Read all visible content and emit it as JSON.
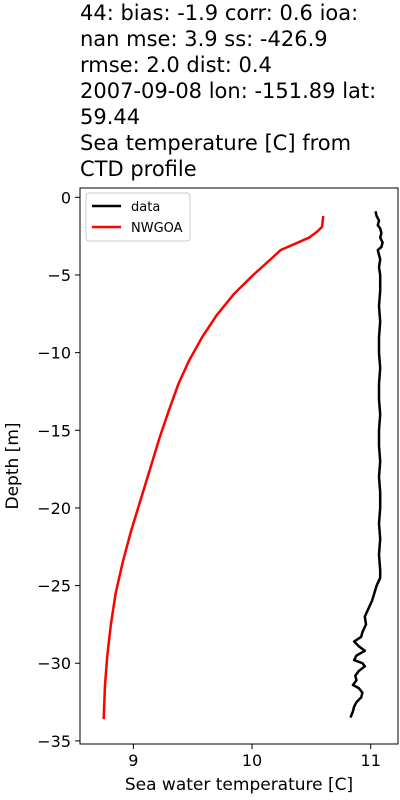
{
  "title_lines": [
    "44: bias: -1.9  corr: 0.6  ioa:",
    "nan  mse: 3.9  ss: -426.9",
    "rmse: 2.0  dist: 0.4",
    "2007-09-08 lon: -151.89 lat:",
    "59.44",
    "Sea temperature [C] from",
    "CTD profile"
  ],
  "chart_data": {
    "type": "line",
    "title": "44: bias: -1.9  corr: 0.6  ioa: nan  mse: 3.9  ss: -426.9 rmse: 2.0  dist: 0.4 2007-09-08 lon: -151.89 lat: 59.44 Sea temperature [C] from CTD profile",
    "xlabel": "Sea water temperature [C]",
    "ylabel": "Depth [m]",
    "xlim": [
      8.55,
      11.23
    ],
    "ylim": [
      -35.2,
      0.6
    ],
    "xticks": [
      9,
      10,
      11
    ],
    "xtick_labels": [
      "9",
      "10",
      "11"
    ],
    "yticks": [
      0,
      -5,
      -10,
      -15,
      -20,
      -25,
      -30,
      -35
    ],
    "ytick_labels": [
      "0",
      "−5",
      "−10",
      "−15",
      "−20",
      "−25",
      "−30",
      "−35"
    ],
    "grid": false,
    "legend": "top-left",
    "series": [
      {
        "name": "data",
        "color": "#000000",
        "points": [
          [
            11.04,
            -0.9
          ],
          [
            11.05,
            -1.2
          ],
          [
            11.07,
            -1.5
          ],
          [
            11.06,
            -1.8
          ],
          [
            11.08,
            -2.0
          ],
          [
            11.09,
            -2.3
          ],
          [
            11.08,
            -2.6
          ],
          [
            11.1,
            -2.9
          ],
          [
            11.09,
            -3.2
          ],
          [
            11.06,
            -3.4
          ],
          [
            11.07,
            -3.7
          ],
          [
            11.08,
            -4.0
          ],
          [
            11.07,
            -4.5
          ],
          [
            11.08,
            -5.0
          ],
          [
            11.08,
            -6.0
          ],
          [
            11.07,
            -7.0
          ],
          [
            11.08,
            -8.0
          ],
          [
            11.07,
            -9.0
          ],
          [
            11.07,
            -10.0
          ],
          [
            11.08,
            -11.0
          ],
          [
            11.07,
            -12.0
          ],
          [
            11.07,
            -13.0
          ],
          [
            11.08,
            -14.0
          ],
          [
            11.07,
            -15.0
          ],
          [
            11.07,
            -16.0
          ],
          [
            11.08,
            -17.0
          ],
          [
            11.07,
            -18.0
          ],
          [
            11.08,
            -19.0
          ],
          [
            11.08,
            -20.0
          ],
          [
            11.07,
            -21.0
          ],
          [
            11.08,
            -22.0
          ],
          [
            11.07,
            -23.0
          ],
          [
            11.08,
            -24.0
          ],
          [
            11.08,
            -24.5
          ],
          [
            11.05,
            -25.0
          ],
          [
            11.03,
            -25.5
          ],
          [
            11.01,
            -26.0
          ],
          [
            10.98,
            -26.5
          ],
          [
            10.95,
            -27.0
          ],
          [
            10.96,
            -27.5
          ],
          [
            10.93,
            -28.0
          ],
          [
            10.92,
            -28.3
          ],
          [
            10.86,
            -28.6
          ],
          [
            10.9,
            -28.9
          ],
          [
            10.95,
            -29.2
          ],
          [
            10.88,
            -29.5
          ],
          [
            10.86,
            -29.8
          ],
          [
            10.93,
            -30.0
          ],
          [
            10.95,
            -30.2
          ],
          [
            10.9,
            -30.5
          ],
          [
            10.87,
            -30.8
          ],
          [
            10.88,
            -31.1
          ],
          [
            10.85,
            -31.4
          ],
          [
            10.9,
            -31.6
          ],
          [
            10.93,
            -31.9
          ],
          [
            10.92,
            -32.2
          ],
          [
            10.88,
            -32.5
          ],
          [
            10.86,
            -32.8
          ],
          [
            10.85,
            -33.1
          ],
          [
            10.84,
            -33.3
          ],
          [
            10.83,
            -33.5
          ]
        ]
      },
      {
        "name": "NWGOA",
        "color": "#ff0000",
        "points": [
          [
            10.6,
            -1.2
          ],
          [
            10.59,
            -1.9
          ],
          [
            10.55,
            -2.2
          ],
          [
            10.48,
            -2.6
          ],
          [
            10.24,
            -3.4
          ],
          [
            10.17,
            -3.9
          ],
          [
            10.01,
            -5.0
          ],
          [
            9.85,
            -6.2
          ],
          [
            9.7,
            -7.6
          ],
          [
            9.58,
            -9.0
          ],
          [
            9.47,
            -10.5
          ],
          [
            9.38,
            -12.0
          ],
          [
            9.3,
            -13.7
          ],
          [
            9.22,
            -15.5
          ],
          [
            9.14,
            -17.5
          ],
          [
            9.06,
            -19.5
          ],
          [
            8.98,
            -21.5
          ],
          [
            8.91,
            -23.5
          ],
          [
            8.85,
            -25.5
          ],
          [
            8.81,
            -27.5
          ],
          [
            8.78,
            -29.5
          ],
          [
            8.76,
            -31.5
          ],
          [
            8.75,
            -33.6
          ]
        ]
      }
    ]
  }
}
